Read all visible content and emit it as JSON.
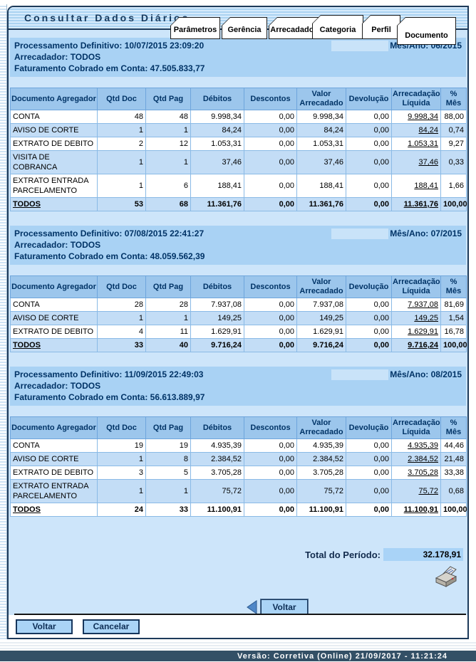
{
  "title": "Consultar Dados Diários",
  "tabs": [
    {
      "label": "Parâmetros",
      "active": false
    },
    {
      "label": "Gerência",
      "active": false
    },
    {
      "label": "Arrecadador",
      "active": false
    },
    {
      "label": "Categoria",
      "active": false
    },
    {
      "label": "Perfil",
      "active": false
    },
    {
      "label": "Documento",
      "active": true
    }
  ],
  "table_headers": [
    "Documento Agregador",
    "Qtd Doc",
    "Qtd Pag",
    "Débitos",
    "Descontos",
    "Valor Arrecadado",
    "Devolução",
    "Arrecadação Líquida",
    "% Mês"
  ],
  "sections": [
    {
      "processamento": "Processamento Definitivo: 10/07/2015 23:09:20",
      "mes_ano": "Mês/Ano: 06/2015",
      "arrecadador": "Arrecadador: TODOS",
      "faturamento": "Faturamento Cobrado em Conta: 47.505.833,77",
      "rows": [
        [
          "CONTA",
          "48",
          "48",
          "9.998,34",
          "0,00",
          "9.998,34",
          "0,00",
          "9.998,34",
          "88,00"
        ],
        [
          "AVISO DE CORTE",
          "1",
          "1",
          "84,24",
          "0,00",
          "84,24",
          "0,00",
          "84,24",
          "0,74"
        ],
        [
          "EXTRATO DE DEBITO",
          "2",
          "12",
          "1.053,31",
          "0,00",
          "1.053,31",
          "0,00",
          "1.053,31",
          "9,27"
        ],
        [
          "VISITA DE COBRANCA",
          "1",
          "1",
          "37,46",
          "0,00",
          "37,46",
          "0,00",
          "37,46",
          "0,33"
        ],
        [
          "EXTRATO ENTRADA PARCELAMENTO",
          "1",
          "6",
          "188,41",
          "0,00",
          "188,41",
          "0,00",
          "188,41",
          "1,66"
        ],
        [
          "TODOS",
          "53",
          "68",
          "11.361,76",
          "0,00",
          "11.361,76",
          "0,00",
          "11.361,76",
          "100,00"
        ]
      ]
    },
    {
      "processamento": "Processamento Definitivo: 07/08/2015 22:41:27",
      "mes_ano": "Mês/Ano: 07/2015",
      "arrecadador": "Arrecadador: TODOS",
      "faturamento": "Faturamento Cobrado em Conta: 48.059.562,39",
      "rows": [
        [
          "CONTA",
          "28",
          "28",
          "7.937,08",
          "0,00",
          "7.937,08",
          "0,00",
          "7.937,08",
          "81,69"
        ],
        [
          "AVISO DE CORTE",
          "1",
          "1",
          "149,25",
          "0,00",
          "149,25",
          "0,00",
          "149,25",
          "1,54"
        ],
        [
          "EXTRATO DE DEBITO",
          "4",
          "11",
          "1.629,91",
          "0,00",
          "1.629,91",
          "0,00",
          "1.629,91",
          "16,78"
        ],
        [
          "TODOS",
          "33",
          "40",
          "9.716,24",
          "0,00",
          "9.716,24",
          "0,00",
          "9.716,24",
          "100,00"
        ]
      ]
    },
    {
      "processamento": "Processamento Definitivo: 11/09/2015 22:49:03",
      "mes_ano": "Mês/Ano: 08/2015",
      "arrecadador": "Arrecadador: TODOS",
      "faturamento": "Faturamento Cobrado em Conta: 56.613.889,97",
      "rows": [
        [
          "CONTA",
          "19",
          "19",
          "4.935,39",
          "0,00",
          "4.935,39",
          "0,00",
          "4.935,39",
          "44,46"
        ],
        [
          "AVISO DE CORTE",
          "1",
          "8",
          "2.384,52",
          "0,00",
          "2.384,52",
          "0,00",
          "2.384,52",
          "21,48"
        ],
        [
          "EXTRATO DE DEBITO",
          "3",
          "5",
          "3.705,28",
          "0,00",
          "3.705,28",
          "0,00",
          "3.705,28",
          "33,38"
        ],
        [
          "EXTRATO ENTRADA PARCELAMENTO",
          "1",
          "1",
          "75,72",
          "0,00",
          "75,72",
          "0,00",
          "75,72",
          "0,68"
        ],
        [
          "TODOS",
          "24",
          "33",
          "11.100,91",
          "0,00",
          "11.100,91",
          "0,00",
          "11.100,91",
          "100,00"
        ]
      ]
    }
  ],
  "total_periodo": {
    "label": "Total do Período:",
    "value": "32.178,91"
  },
  "buttons": {
    "back_mid": "Voltar",
    "voltar": "Voltar",
    "cancelar": "Cancelar"
  },
  "icons": {
    "printer": "print-icon",
    "back_arrow": "back-arrow-icon"
  },
  "version_bar": "Versão: Corretiva (Online) 21/09/2017 - 11:21:24",
  "colors": {
    "page_bg": "#cde5fa",
    "section_bg": "#a9d2f4",
    "table_header_bg": "#9cc6ec",
    "row_alt_bg": "#c3ddf6",
    "frame_border": "#1d3a5a",
    "button_bg": "#aad4f6",
    "version_bar_bg": "#335066",
    "text_navy": "#003366"
  }
}
